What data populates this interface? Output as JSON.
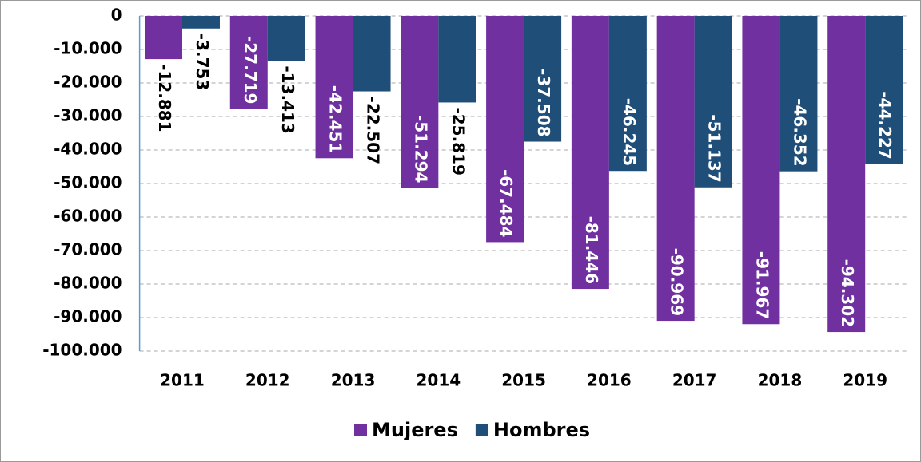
{
  "chart_data": {
    "type": "bar",
    "categories": [
      "2011",
      "2012",
      "2013",
      "2014",
      "2015",
      "2016",
      "2017",
      "2018",
      "2019"
    ],
    "series": [
      {
        "name": "Mujeres",
        "color": "#7030a0",
        "values": [
          -12881,
          -27719,
          -42451,
          -51294,
          -67484,
          -81446,
          -90969,
          -91967,
          -94302
        ],
        "value_labels": [
          "-12.881",
          "-27.719",
          "-42.451",
          "-51.294",
          "-67.484",
          "-81.446",
          "-90.969",
          "-91.967",
          "-94.302"
        ]
      },
      {
        "name": "Hombres",
        "color": "#1f4e79",
        "values": [
          -3753,
          -13413,
          -22507,
          -25819,
          -37508,
          -46245,
          -51137,
          -46352,
          -44227
        ],
        "value_labels": [
          "-3.753",
          "-13.413",
          "-22.507",
          "-25.819",
          "-37.508",
          "-46.245",
          "-51.137",
          "-46.352",
          "-44.227"
        ]
      }
    ],
    "ylim": [
      -100000,
      0
    ],
    "yticks": [
      0,
      {
        "value": -10000,
        "label": "-10.000"
      },
      {
        "value": -20000,
        "label": "-20.000"
      },
      {
        "value": -30000,
        "label": "-30.000"
      },
      {
        "value": -40000,
        "label": "-40.000"
      },
      {
        "value": -50000,
        "label": "-50.000"
      },
      {
        "value": -60000,
        "label": "-60.000"
      },
      {
        "value": -70000,
        "label": "-70.000"
      },
      {
        "value": -80000,
        "label": "-80.000"
      },
      {
        "value": -90000,
        "label": "-90.000"
      },
      {
        "value": -100000,
        "label": "-100.000"
      }
    ],
    "grid": true,
    "legend": "bottom"
  }
}
